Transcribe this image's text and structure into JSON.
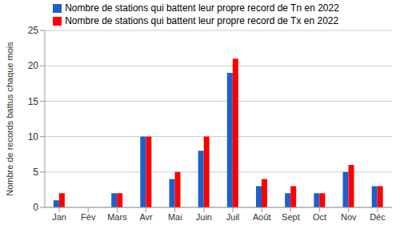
{
  "chart_data": {
    "type": "bar",
    "y_label": "Nombre de records battus chaque mois",
    "categories": [
      "Jan",
      "Fév",
      "Mars",
      "Avr",
      "Mai",
      "Juin",
      "Juil",
      "Août",
      "Sept",
      "Oct",
      "Nov",
      "Déc"
    ],
    "series": [
      {
        "name": "Nombre de stations qui battent leur propre record de Tn en 2022",
        "color": "#1f5fc9",
        "values": [
          1,
          0,
          2,
          10,
          4,
          8,
          19,
          3,
          2,
          2,
          5,
          3
        ]
      },
      {
        "name": "Nombre de stations qui battent leur propre record de Tx en 2022",
        "color": "#ff0000",
        "values": [
          2,
          0,
          2,
          10,
          5,
          10,
          21,
          4,
          3,
          2,
          6,
          3
        ]
      }
    ],
    "ylim": [
      0,
      25
    ],
    "yticks": [
      0,
      5,
      10,
      15,
      20,
      25
    ],
    "grid": true,
    "legend": "top"
  }
}
